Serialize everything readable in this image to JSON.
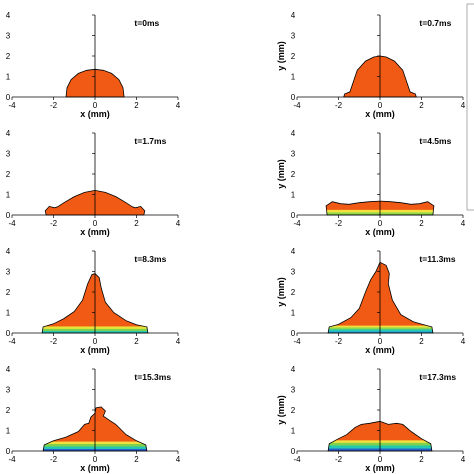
{
  "chart_data": [
    {
      "type": "area",
      "time_label": "t=0ms",
      "xlabel": "x (mm)",
      "ylabel": "",
      "xlim": [
        -4,
        4
      ],
      "ylim": [
        0,
        4
      ],
      "x_ticks": [
        "-4",
        "-2",
        "0",
        "2",
        "4"
      ],
      "y_ticks": [
        "0",
        "1",
        "2",
        "3",
        "4"
      ],
      "outline": [
        [
          -1.4,
          0
        ],
        [
          -1.35,
          0.45
        ],
        [
          -1.15,
          0.85
        ],
        [
          -0.8,
          1.15
        ],
        [
          -0.4,
          1.3
        ],
        [
          0,
          1.35
        ],
        [
          0.4,
          1.3
        ],
        [
          0.8,
          1.15
        ],
        [
          1.15,
          0.85
        ],
        [
          1.35,
          0.45
        ],
        [
          1.4,
          0
        ]
      ],
      "center_y": 1.35,
      "bands": []
    },
    {
      "type": "area",
      "time_label": "t=0.7ms",
      "xlabel": "x (mm)",
      "ylabel": "y (mm)",
      "xlim": [
        -4,
        4
      ],
      "ylim": [
        0,
        4
      ],
      "x_ticks": [
        "-4",
        "-2",
        "0",
        "2",
        "4"
      ],
      "y_ticks": [
        "0",
        "1",
        "2",
        "3",
        "4"
      ],
      "outline": [
        [
          -1.75,
          0
        ],
        [
          -1.7,
          0.15
        ],
        [
          -1.45,
          0.25
        ],
        [
          -1.3,
          0.7
        ],
        [
          -1.1,
          1.3
        ],
        [
          -0.7,
          1.75
        ],
        [
          -0.3,
          1.95
        ],
        [
          0,
          2.0
        ],
        [
          0.3,
          1.95
        ],
        [
          0.7,
          1.75
        ],
        [
          1.1,
          1.3
        ],
        [
          1.3,
          0.7
        ],
        [
          1.45,
          0.25
        ],
        [
          1.7,
          0.15
        ],
        [
          1.75,
          0
        ]
      ],
      "bands": []
    },
    {
      "type": "area",
      "time_label": "t=1.7ms",
      "xlabel": "x (mm)",
      "ylabel": "",
      "xlim": [
        -4,
        4
      ],
      "ylim": [
        0,
        4
      ],
      "x_ticks": [
        "-4",
        "-2",
        "0",
        "2",
        "4"
      ],
      "y_ticks": [
        "0",
        "1",
        "2",
        "3",
        "4"
      ],
      "outline": [
        [
          -2.35,
          0
        ],
        [
          -2.4,
          0.2
        ],
        [
          -2.2,
          0.42
        ],
        [
          -1.95,
          0.35
        ],
        [
          -1.8,
          0.4
        ],
        [
          -1.5,
          0.6
        ],
        [
          -1,
          0.9
        ],
        [
          -0.5,
          1.1
        ],
        [
          0,
          1.2
        ],
        [
          0.5,
          1.1
        ],
        [
          1,
          0.9
        ],
        [
          1.5,
          0.6
        ],
        [
          1.8,
          0.4
        ],
        [
          1.95,
          0.35
        ],
        [
          2.2,
          0.42
        ],
        [
          2.4,
          0.2
        ],
        [
          2.35,
          0
        ]
      ],
      "bands": []
    },
    {
      "type": "area",
      "time_label": "t=4.5ms",
      "xlabel": "x (mm)",
      "ylabel": "y (mm)",
      "xlim": [
        -4,
        4
      ],
      "ylim": [
        0,
        4
      ],
      "x_ticks": [
        "-4",
        "-2",
        "0",
        "2",
        "4"
      ],
      "y_ticks": [
        "0",
        "1",
        "2",
        "3",
        "4"
      ],
      "outline": [
        [
          -2.55,
          0
        ],
        [
          -2.6,
          0.45
        ],
        [
          -2.3,
          0.65
        ],
        [
          -1.9,
          0.55
        ],
        [
          -1.5,
          0.52
        ],
        [
          -1,
          0.6
        ],
        [
          -0.5,
          0.65
        ],
        [
          0,
          0.68
        ],
        [
          0.5,
          0.65
        ],
        [
          1,
          0.6
        ],
        [
          1.5,
          0.52
        ],
        [
          1.9,
          0.55
        ],
        [
          2.3,
          0.65
        ],
        [
          2.6,
          0.45
        ],
        [
          2.55,
          0
        ]
      ],
      "bands": [
        {
          "color": "#8ed64a",
          "h": 0.12
        },
        {
          "color": "#f0e140",
          "h": 0.25
        }
      ]
    },
    {
      "type": "area",
      "time_label": "t=8.3ms",
      "xlabel": "x (mm)",
      "ylabel": "",
      "xlim": [
        -4,
        4
      ],
      "ylim": [
        0,
        4
      ],
      "x_ticks": [
        "-4",
        "-2",
        "0",
        "2",
        "4"
      ],
      "y_ticks": [
        "0",
        "1",
        "2",
        "3",
        "4"
      ],
      "outline": [
        [
          -2.55,
          0
        ],
        [
          -2.5,
          0.3
        ],
        [
          -2,
          0.45
        ],
        [
          -1.5,
          0.7
        ],
        [
          -1,
          1.05
        ],
        [
          -0.6,
          1.6
        ],
        [
          -0.35,
          2.4
        ],
        [
          -0.15,
          2.85
        ],
        [
          0,
          2.9
        ],
        [
          0.2,
          2.7
        ],
        [
          0.3,
          2.2
        ],
        [
          0.5,
          1.5
        ],
        [
          0.9,
          1.0
        ],
        [
          1.5,
          0.6
        ],
        [
          2,
          0.4
        ],
        [
          2.5,
          0.3
        ],
        [
          2.55,
          0
        ]
      ],
      "bands": [
        {
          "color": "#25c9b0",
          "h": 0.1
        },
        {
          "color": "#7fd24a",
          "h": 0.2
        },
        {
          "color": "#e8e33a",
          "h": 0.32
        }
      ]
    },
    {
      "type": "area",
      "time_label": "t=11.3ms",
      "xlabel": "x (mm)",
      "ylabel": "y (mm)",
      "xlim": [
        -4,
        4
      ],
      "ylim": [
        0,
        4
      ],
      "x_ticks": [
        "-4",
        "-2",
        "0",
        "2",
        "4"
      ],
      "y_ticks": [
        "0",
        "1",
        "2",
        "3",
        "4"
      ],
      "outline": [
        [
          -2.5,
          0
        ],
        [
          -2.45,
          0.3
        ],
        [
          -2,
          0.42
        ],
        [
          -1.4,
          0.75
        ],
        [
          -1.0,
          1.2
        ],
        [
          -0.7,
          2.0
        ],
        [
          -0.45,
          2.6
        ],
        [
          -0.2,
          3.0
        ],
        [
          0,
          3.45
        ],
        [
          0.3,
          3.3
        ],
        [
          0.45,
          2.9
        ],
        [
          0.4,
          2.4
        ],
        [
          0.6,
          1.6
        ],
        [
          1.0,
          0.9
        ],
        [
          1.6,
          0.55
        ],
        [
          2.2,
          0.38
        ],
        [
          2.5,
          0.3
        ],
        [
          2.55,
          0
        ]
      ],
      "bands": [
        {
          "color": "#2aa0d8",
          "h": 0.08
        },
        {
          "color": "#25c9b0",
          "h": 0.18
        },
        {
          "color": "#8ed64a",
          "h": 0.27
        },
        {
          "color": "#f0e140",
          "h": 0.36
        }
      ]
    },
    {
      "type": "area",
      "time_label": "t=15.3ms",
      "xlabel": "x (mm)",
      "ylabel": "",
      "xlim": [
        -4,
        4
      ],
      "ylim": [
        0,
        4
      ],
      "x_ticks": [
        "-4",
        "-2",
        "0",
        "2",
        "4"
      ],
      "y_ticks": [
        "0",
        "1",
        "2",
        "3",
        "4"
      ],
      "outline": [
        [
          -2.5,
          0
        ],
        [
          -2.45,
          0.3
        ],
        [
          -2,
          0.5
        ],
        [
          -1.4,
          0.68
        ],
        [
          -0.8,
          0.95
        ],
        [
          -0.5,
          1.3
        ],
        [
          -0.3,
          1.35
        ],
        [
          -0.2,
          1.65
        ],
        [
          0,
          1.85
        ],
        [
          0.05,
          2.1
        ],
        [
          0.3,
          2.15
        ],
        [
          0.5,
          1.95
        ],
        [
          0.4,
          1.7
        ],
        [
          0.7,
          1.5
        ],
        [
          1.0,
          1.3
        ],
        [
          1.5,
          0.8
        ],
        [
          2.0,
          0.5
        ],
        [
          2.45,
          0.3
        ],
        [
          2.5,
          0
        ]
      ],
      "bands": [
        {
          "color": "#2a5fd0",
          "h": 0.1
        },
        {
          "color": "#25c9b0",
          "h": 0.22
        },
        {
          "color": "#7fd24a",
          "h": 0.34
        },
        {
          "color": "#f0e140",
          "h": 0.46
        }
      ]
    },
    {
      "type": "area",
      "time_label": "t=17.3ms",
      "xlabel": "x (mm)",
      "ylabel": "y (mm)",
      "xlim": [
        -4,
        4
      ],
      "ylim": [
        0,
        4
      ],
      "x_ticks": [
        "-4",
        "-2",
        "0",
        "2",
        "4"
      ],
      "y_ticks": [
        "0",
        "1",
        "2",
        "3",
        "4"
      ],
      "outline": [
        [
          -2.5,
          0
        ],
        [
          -2.45,
          0.35
        ],
        [
          -2,
          0.6
        ],
        [
          -1.6,
          0.8
        ],
        [
          -1.2,
          1.15
        ],
        [
          -0.9,
          1.3
        ],
        [
          -0.5,
          1.35
        ],
        [
          0,
          1.45
        ],
        [
          0.4,
          1.3
        ],
        [
          0.8,
          1.35
        ],
        [
          1.1,
          1.3
        ],
        [
          1.5,
          0.95
        ],
        [
          2.0,
          0.6
        ],
        [
          2.45,
          0.35
        ],
        [
          2.5,
          0
        ]
      ],
      "bands": [
        {
          "color": "#2a5fd0",
          "h": 0.12
        },
        {
          "color": "#25c9b0",
          "h": 0.27
        },
        {
          "color": "#7fd24a",
          "h": 0.4
        },
        {
          "color": "#f0e140",
          "h": 0.52
        }
      ]
    }
  ],
  "colors": {
    "droplet": "#f05a14",
    "outline": "#000000",
    "axis": "#000000"
  }
}
